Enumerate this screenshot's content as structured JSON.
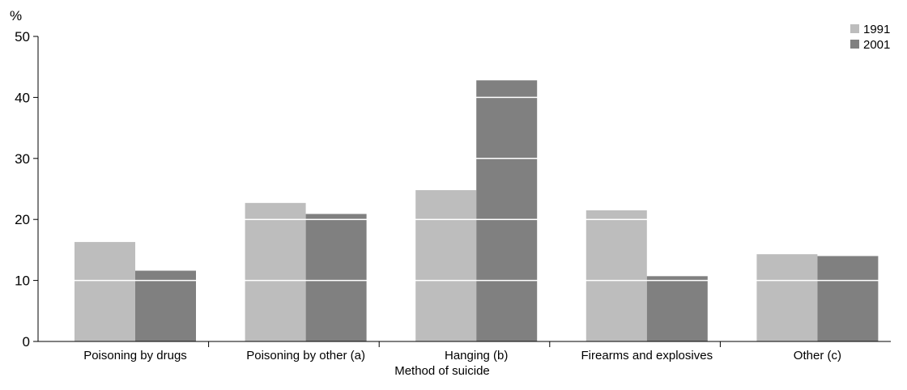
{
  "chart_data": {
    "type": "bar",
    "y_unit_label": "%",
    "xlabel": "Method of suicide",
    "categories": [
      "Poisoning by drugs",
      "Poisoning by other (a)",
      "Hanging (b)",
      "Firearms and explosives",
      "Other (c)"
    ],
    "series": [
      {
        "name": "1991",
        "color": "#bdbdbd",
        "values": [
          16.3,
          22.7,
          24.8,
          21.5,
          14.3
        ]
      },
      {
        "name": "2001",
        "color": "#808080",
        "values": [
          11.6,
          20.9,
          42.8,
          10.7,
          14.0
        ]
      }
    ],
    "ylim": [
      0,
      50
    ],
    "yticks": [
      0,
      10,
      20,
      30,
      40,
      50
    ],
    "grid": "white lines drawn over bars at each major tick",
    "legend_position": "top-right"
  }
}
